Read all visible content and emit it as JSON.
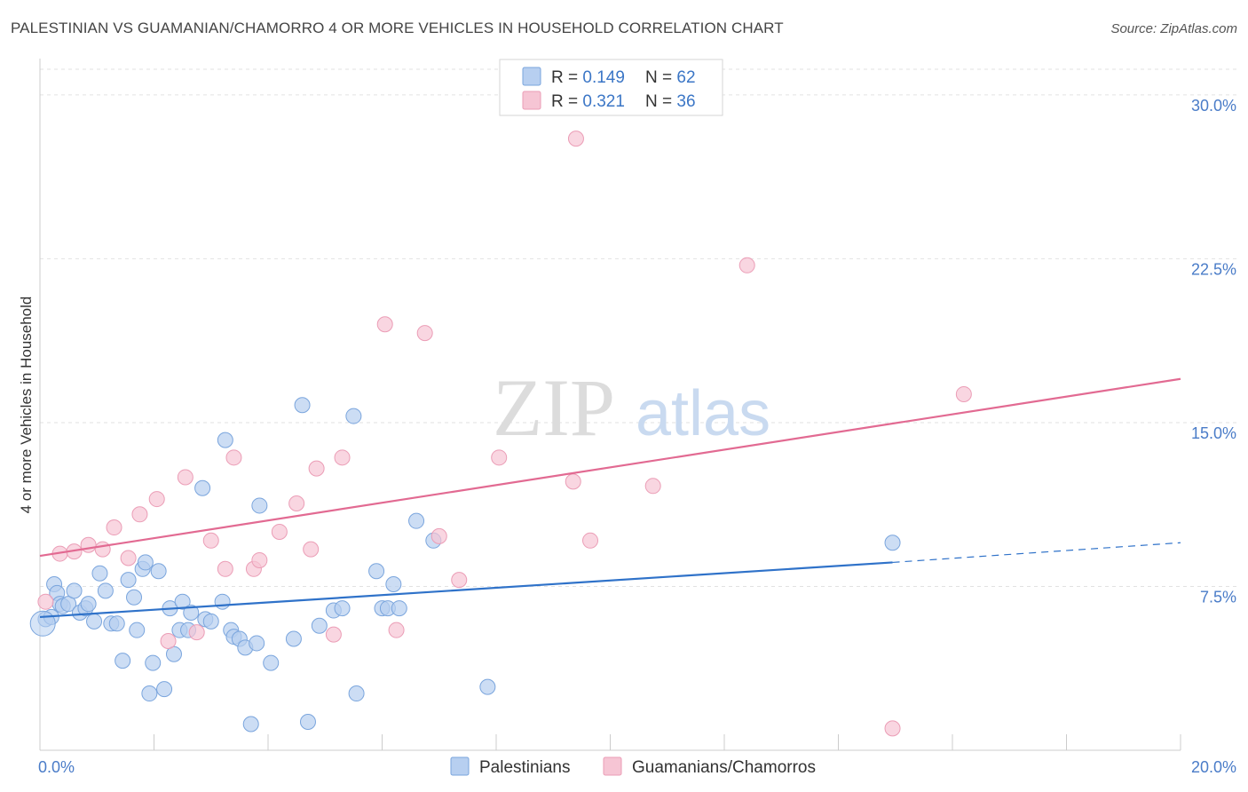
{
  "title": "PALESTINIAN VS GUAMANIAN/CHAMORRO 4 OR MORE VEHICLES IN HOUSEHOLD CORRELATION CHART",
  "source": "Source: ZipAtlas.com",
  "watermark": {
    "zip": "ZIP",
    "atlas": "atlas"
  },
  "colors": {
    "blue_fill": "#b7cff0",
    "blue_stroke": "#7aa5dd",
    "blue_line": "#2f72c9",
    "pink_fill": "#f6c5d4",
    "pink_stroke": "#eb9db6",
    "pink_line": "#e26a92",
    "tick_text": "#4a7cc8",
    "grid": "#e2e2e2"
  },
  "legend": {
    "rows": [
      {
        "r_label": "R = ",
        "r_value": "0.149",
        "n_label": "N = ",
        "n_value": "62"
      },
      {
        "r_label": "R = ",
        "r_value": "0.321",
        "n_label": "N = ",
        "n_value": "36"
      }
    ]
  },
  "chart_data": {
    "type": "scatter",
    "title": "PALESTINIAN VS GUAMANIAN/CHAMORRO 4 OR MORE VEHICLES IN HOUSEHOLD CORRELATION CHART",
    "xlabel": "",
    "ylabel": "4 or more Vehicles in Household",
    "xlim": [
      0,
      20
    ],
    "ylim": [
      0,
      31.5
    ],
    "x_tick_labels": [
      {
        "value": 0,
        "label": "0.0%"
      },
      {
        "value": 20,
        "label": "20.0%"
      }
    ],
    "y_tick_labels": [
      {
        "value": 7.5,
        "label": "7.5%"
      },
      {
        "value": 15,
        "label": "15.0%"
      },
      {
        "value": 22.5,
        "label": "22.5%"
      },
      {
        "value": 30,
        "label": "30.0%"
      }
    ],
    "x_minor_ticks": [
      2,
      4,
      6,
      8,
      10,
      12,
      14,
      16,
      18,
      20
    ],
    "grid": true,
    "legend_position": "top-center",
    "series": [
      {
        "name": "Palestinians",
        "color": "#b7cff0",
        "points": [
          [
            0.1,
            6.0
          ],
          [
            0.2,
            6.1
          ],
          [
            0.25,
            7.6
          ],
          [
            0.3,
            7.2
          ],
          [
            0.35,
            6.7
          ],
          [
            0.4,
            6.6
          ],
          [
            0.5,
            6.7
          ],
          [
            0.6,
            7.3
          ],
          [
            0.7,
            6.3
          ],
          [
            0.8,
            6.5
          ],
          [
            0.85,
            6.7
          ],
          [
            0.95,
            5.9
          ],
          [
            1.05,
            8.1
          ],
          [
            1.15,
            7.3
          ],
          [
            1.25,
            5.8
          ],
          [
            1.35,
            5.8
          ],
          [
            1.45,
            4.1
          ],
          [
            1.55,
            7.8
          ],
          [
            1.65,
            7.0
          ],
          [
            1.7,
            5.5
          ],
          [
            1.8,
            8.3
          ],
          [
            1.85,
            8.6
          ],
          [
            1.92,
            2.6
          ],
          [
            1.98,
            4.0
          ],
          [
            2.08,
            8.2
          ],
          [
            2.18,
            2.8
          ],
          [
            2.28,
            6.5
          ],
          [
            2.35,
            4.4
          ],
          [
            2.45,
            5.5
          ],
          [
            2.5,
            6.8
          ],
          [
            2.6,
            5.5
          ],
          [
            2.65,
            6.3
          ],
          [
            2.85,
            12.0
          ],
          [
            2.9,
            6.0
          ],
          [
            3.0,
            5.9
          ],
          [
            3.2,
            6.8
          ],
          [
            3.25,
            14.2
          ],
          [
            3.35,
            5.5
          ],
          [
            3.4,
            5.2
          ],
          [
            3.5,
            5.1
          ],
          [
            3.6,
            4.7
          ],
          [
            3.7,
            1.2
          ],
          [
            3.8,
            4.9
          ],
          [
            3.85,
            11.2
          ],
          [
            4.05,
            4.0
          ],
          [
            4.45,
            5.1
          ],
          [
            4.6,
            15.8
          ],
          [
            4.7,
            1.3
          ],
          [
            4.9,
            5.7
          ],
          [
            5.15,
            6.4
          ],
          [
            5.3,
            6.5
          ],
          [
            5.5,
            15.3
          ],
          [
            5.55,
            2.6
          ],
          [
            5.9,
            8.2
          ],
          [
            6.0,
            6.5
          ],
          [
            6.1,
            6.5
          ],
          [
            6.2,
            7.6
          ],
          [
            6.3,
            6.5
          ],
          [
            6.6,
            10.5
          ],
          [
            6.9,
            9.6
          ],
          [
            7.85,
            2.9
          ],
          [
            14.95,
            9.5
          ]
        ]
      },
      {
        "name": "Guamanians/Chamorros",
        "color": "#f6c5d4",
        "points": [
          [
            0.1,
            6.8
          ],
          [
            0.35,
            9.0
          ],
          [
            0.6,
            9.1
          ],
          [
            0.85,
            9.4
          ],
          [
            1.1,
            9.2
          ],
          [
            1.3,
            10.2
          ],
          [
            1.55,
            8.8
          ],
          [
            1.75,
            10.8
          ],
          [
            2.05,
            11.5
          ],
          [
            2.25,
            5.0
          ],
          [
            2.55,
            12.5
          ],
          [
            2.75,
            5.4
          ],
          [
            3.0,
            9.6
          ],
          [
            3.25,
            8.3
          ],
          [
            3.4,
            13.4
          ],
          [
            3.75,
            8.3
          ],
          [
            3.85,
            8.7
          ],
          [
            4.2,
            10.0
          ],
          [
            4.5,
            11.3
          ],
          [
            4.75,
            9.2
          ],
          [
            4.85,
            12.9
          ],
          [
            5.15,
            5.3
          ],
          [
            5.3,
            13.4
          ],
          [
            6.05,
            19.5
          ],
          [
            6.25,
            5.5
          ],
          [
            6.75,
            19.1
          ],
          [
            7.0,
            9.8
          ],
          [
            7.35,
            7.8
          ],
          [
            8.05,
            13.4
          ],
          [
            9.35,
            12.3
          ],
          [
            9.4,
            28.0
          ],
          [
            9.65,
            9.6
          ],
          [
            10.75,
            12.1
          ],
          [
            12.4,
            22.2
          ],
          [
            14.95,
            1.0
          ],
          [
            16.2,
            16.3
          ]
        ]
      }
    ],
    "trend_lines": [
      {
        "series": "Palestinians",
        "solid": [
          [
            0,
            6.1
          ],
          [
            14.95,
            8.6
          ]
        ],
        "dashed": [
          [
            14.95,
            8.6
          ],
          [
            20,
            9.5
          ]
        ]
      },
      {
        "series": "Guamanians/Chamorros",
        "solid": [
          [
            0,
            8.9
          ],
          [
            20,
            17.0
          ]
        ]
      }
    ]
  }
}
